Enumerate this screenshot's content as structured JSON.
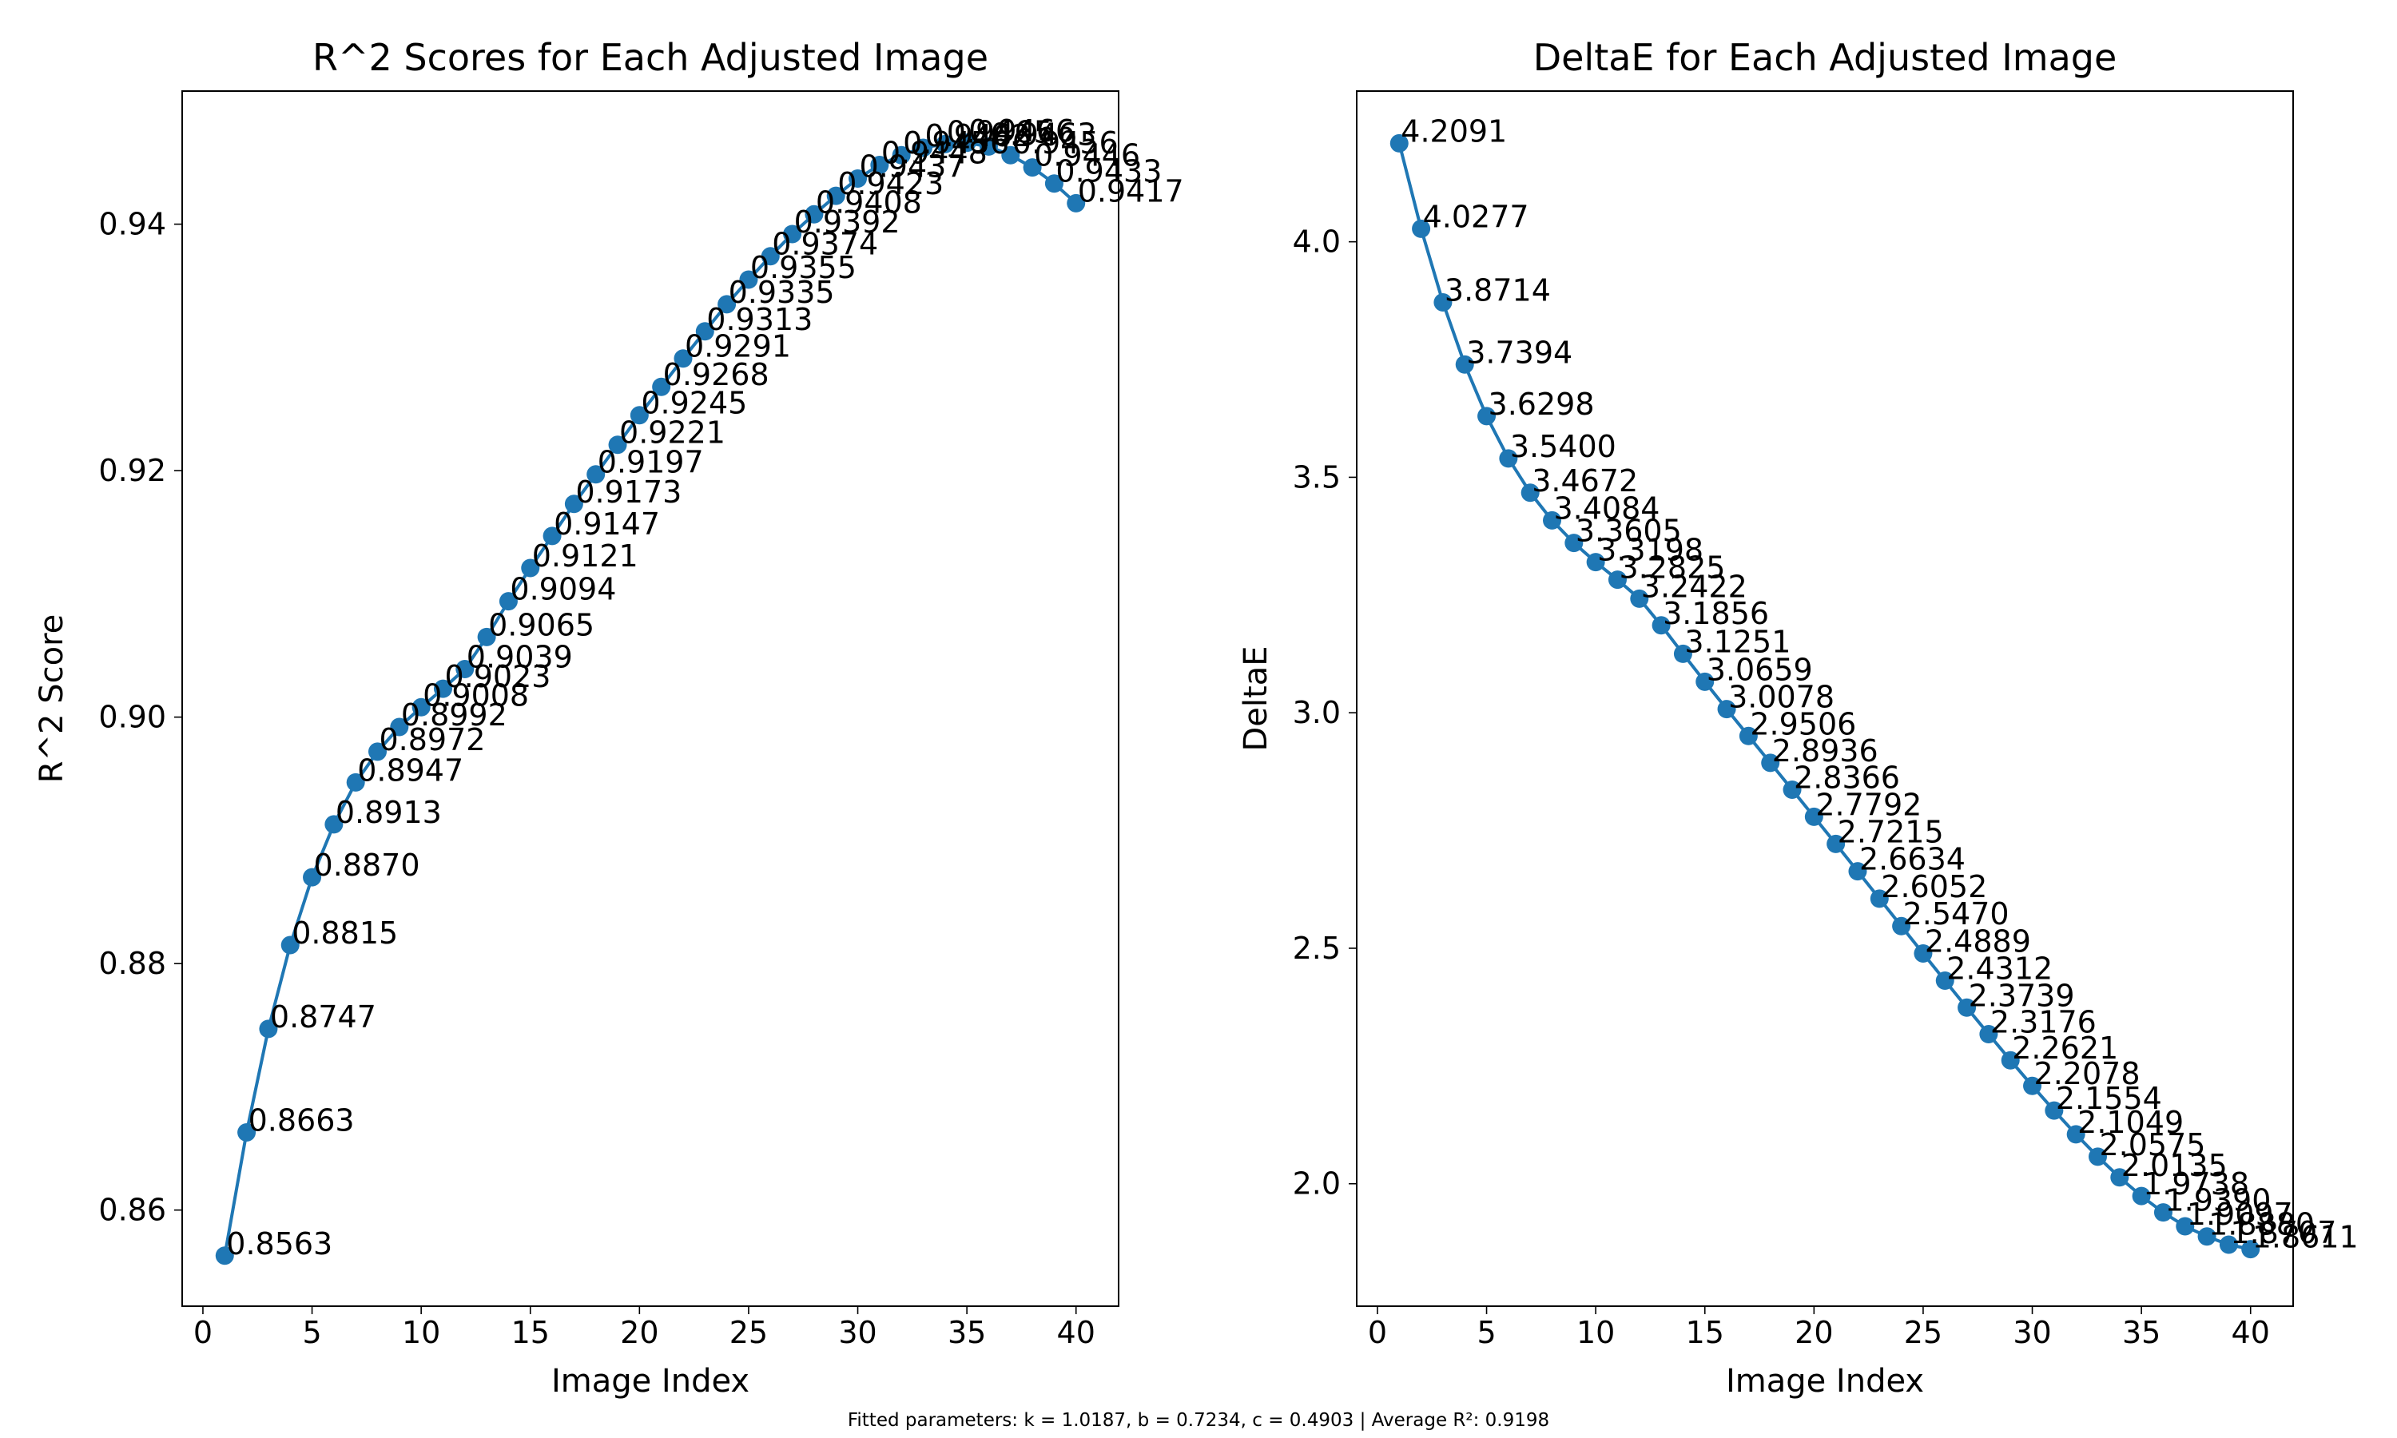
{
  "footer": "Fitted parameters: k = 1.0187, b = 0.7234, c = 0.4903 | Average R²: 0.9198",
  "colors": {
    "series": "#1f77b4",
    "axes": "#000000",
    "background": "#ffffff"
  },
  "chart_data": [
    {
      "type": "line",
      "title": "R^2 Scores for Each Adjusted Image",
      "xlabel": "Image Index",
      "ylabel": "R^2 Score",
      "xlim": [
        -0.95,
        41.95
      ],
      "ylim": [
        0.8522,
        0.9508
      ],
      "xticks": [
        0,
        5,
        10,
        15,
        20,
        25,
        30,
        35,
        40
      ],
      "yticks": [
        0.86,
        0.88,
        0.9,
        0.92,
        0.94
      ],
      "ytick_decimals": 2,
      "grid": false,
      "legend": "none",
      "markers": true,
      "data_labels": true,
      "x": [
        1,
        2,
        3,
        4,
        5,
        6,
        7,
        8,
        9,
        10,
        11,
        12,
        13,
        14,
        15,
        16,
        17,
        18,
        19,
        20,
        21,
        22,
        23,
        24,
        25,
        26,
        27,
        28,
        29,
        30,
        31,
        32,
        33,
        34,
        35,
        36,
        37,
        38,
        39,
        40
      ],
      "values": [
        0.8563,
        0.8663,
        0.8747,
        0.8815,
        0.887,
        0.8913,
        0.8947,
        0.8972,
        0.8992,
        0.9008,
        0.9023,
        0.9039,
        0.9065,
        0.9094,
        0.9121,
        0.9147,
        0.9173,
        0.9197,
        0.9221,
        0.9245,
        0.9268,
        0.9291,
        0.9313,
        0.9335,
        0.9355,
        0.9374,
        0.9392,
        0.9408,
        0.9423,
        0.9437,
        0.9448,
        0.9456,
        0.9462,
        0.9465,
        0.9466,
        0.9463,
        0.9456,
        0.9446,
        0.9433,
        0.9417
      ],
      "labels": [
        "0.8563",
        "0.8663",
        "0.8747",
        "0.8815",
        "0.8870",
        "0.8913",
        "0.8947",
        "0.8972",
        "0.8992",
        "0.9008",
        "0.9023",
        "0.9039",
        "0.9065",
        "0.9094",
        "0.9121",
        "0.9147",
        "0.9173",
        "0.9197",
        "0.9221",
        "0.9245",
        "0.9268",
        "0.9291",
        "0.9313",
        "0.9335",
        "0.9355",
        "0.9374",
        "0.9392",
        "0.9408",
        "0.9423",
        "0.9437",
        "0.9448",
        "0.9456",
        "0.9462",
        "0.9465",
        "0.9466",
        "0.9463",
        "0.9456",
        "0.9446",
        "0.9433",
        "0.9417"
      ]
    },
    {
      "type": "line",
      "title": "DeltaE for Each Adjusted Image",
      "xlabel": "Image Index",
      "ylabel": "DeltaE",
      "xlim": [
        -0.95,
        41.95
      ],
      "ylim": [
        1.74,
        4.32
      ],
      "xticks": [
        0,
        5,
        10,
        15,
        20,
        25,
        30,
        35,
        40
      ],
      "yticks": [
        2.0,
        2.5,
        3.0,
        3.5,
        4.0
      ],
      "ytick_decimals": 1,
      "grid": false,
      "legend": "none",
      "markers": true,
      "data_labels": true,
      "x": [
        1,
        2,
        3,
        4,
        5,
        6,
        7,
        8,
        9,
        10,
        11,
        12,
        13,
        14,
        15,
        16,
        17,
        18,
        19,
        20,
        21,
        22,
        23,
        24,
        25,
        26,
        27,
        28,
        29,
        30,
        31,
        32,
        33,
        34,
        35,
        36,
        37,
        38,
        39,
        40
      ],
      "values": [
        4.2091,
        4.0277,
        3.8714,
        3.7394,
        3.6298,
        3.54,
        3.4672,
        3.4084,
        3.3605,
        3.3198,
        3.2825,
        3.2422,
        3.1856,
        3.1251,
        3.0659,
        3.0078,
        2.9506,
        2.8936,
        2.8366,
        2.7792,
        2.7215,
        2.6634,
        2.6052,
        2.547,
        2.4889,
        2.4312,
        2.3739,
        2.3176,
        2.2621,
        2.2078,
        2.1554,
        2.1049,
        2.0575,
        2.0135,
        1.9738,
        1.939,
        1.9097,
        1.888,
        1.8707,
        1.8611
      ],
      "labels": [
        "4.2091",
        "4.0277",
        "3.8714",
        "3.7394",
        "3.6298",
        "3.5400",
        "3.4672",
        "3.4084",
        "3.3605",
        "3.3198",
        "3.2825",
        "3.2422",
        "3.1856",
        "3.1251",
        "3.0659",
        "3.0078",
        "2.9506",
        "2.8936",
        "2.8366",
        "2.7792",
        "2.7215",
        "2.6634",
        "2.6052",
        "2.5470",
        "2.4889",
        "2.4312",
        "2.3739",
        "2.3176",
        "2.2621",
        "2.2078",
        "2.1554",
        "2.1049",
        "2.0575",
        "2.0135",
        "1.9738",
        "1.9390",
        "1.9097",
        "1.8880",
        "1.8707",
        "1.8611"
      ]
    }
  ]
}
